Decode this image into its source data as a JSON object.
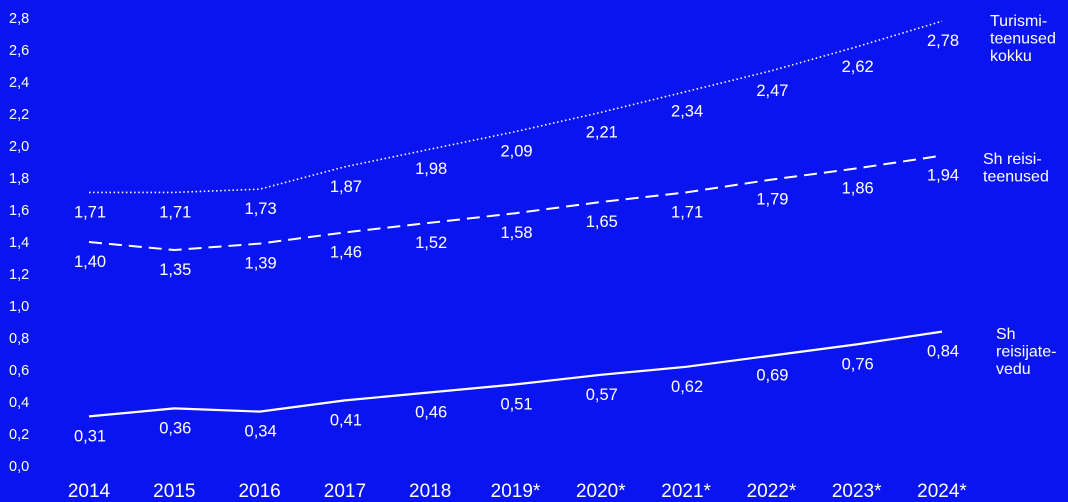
{
  "colors": {
    "background": "#0a14f0",
    "foreground": "#ffffff"
  },
  "chart_data": {
    "type": "line",
    "title": "",
    "xlabel": "",
    "ylabel": "",
    "ylim": [
      0,
      2.8
    ],
    "yticks": [
      "0,0",
      "0,2",
      "0,4",
      "0,6",
      "0,8",
      "1,0",
      "1,2",
      "1,4",
      "1,6",
      "1,8",
      "2,0",
      "2,2",
      "2,4",
      "2,6",
      "2,8"
    ],
    "categories": [
      "2014",
      "2015",
      "2016",
      "2017",
      "2018",
      "2019*",
      "2020*",
      "2021*",
      "2022*",
      "2023*",
      "2024*"
    ],
    "grid": false,
    "legend": "right, end-of-line labels",
    "series": [
      {
        "name": "Turismi-teenused kokku",
        "name_lines": [
          "Turismi-",
          "teenused",
          "kokku"
        ],
        "line_style": "dotted",
        "values": [
          1.71,
          1.71,
          1.73,
          1.87,
          1.98,
          2.09,
          2.21,
          2.34,
          2.47,
          2.62,
          2.78
        ],
        "labels": [
          "1,71",
          "1,71",
          "1,73",
          "1,87",
          "1,98",
          "2,09",
          "2,21",
          "2,34",
          "2,47",
          "2,62",
          "2,78"
        ]
      },
      {
        "name": "Sh reisi-teenused",
        "name_lines": [
          "Sh reisi-",
          "teenused"
        ],
        "line_style": "dashed",
        "values": [
          1.4,
          1.35,
          1.39,
          1.46,
          1.52,
          1.58,
          1.65,
          1.71,
          1.79,
          1.86,
          1.94
        ],
        "labels": [
          "1,40",
          "1,35",
          "1,39",
          "1,46",
          "1,52",
          "1,58",
          "1,65",
          "1,71",
          "1,79",
          "1,86",
          "1,94"
        ]
      },
      {
        "name": "Sh reisijate-vedu",
        "name_lines": [
          "Sh",
          "reisijate-",
          "vedu"
        ],
        "line_style": "solid",
        "values": [
          0.31,
          0.36,
          0.34,
          0.41,
          0.46,
          0.51,
          0.57,
          0.62,
          0.69,
          0.76,
          0.84
        ],
        "labels": [
          "0,31",
          "0,36",
          "0,34",
          "0,41",
          "0,46",
          "0,51",
          "0,57",
          "0,62",
          "0,69",
          "0,76",
          "0,84"
        ]
      }
    ]
  }
}
